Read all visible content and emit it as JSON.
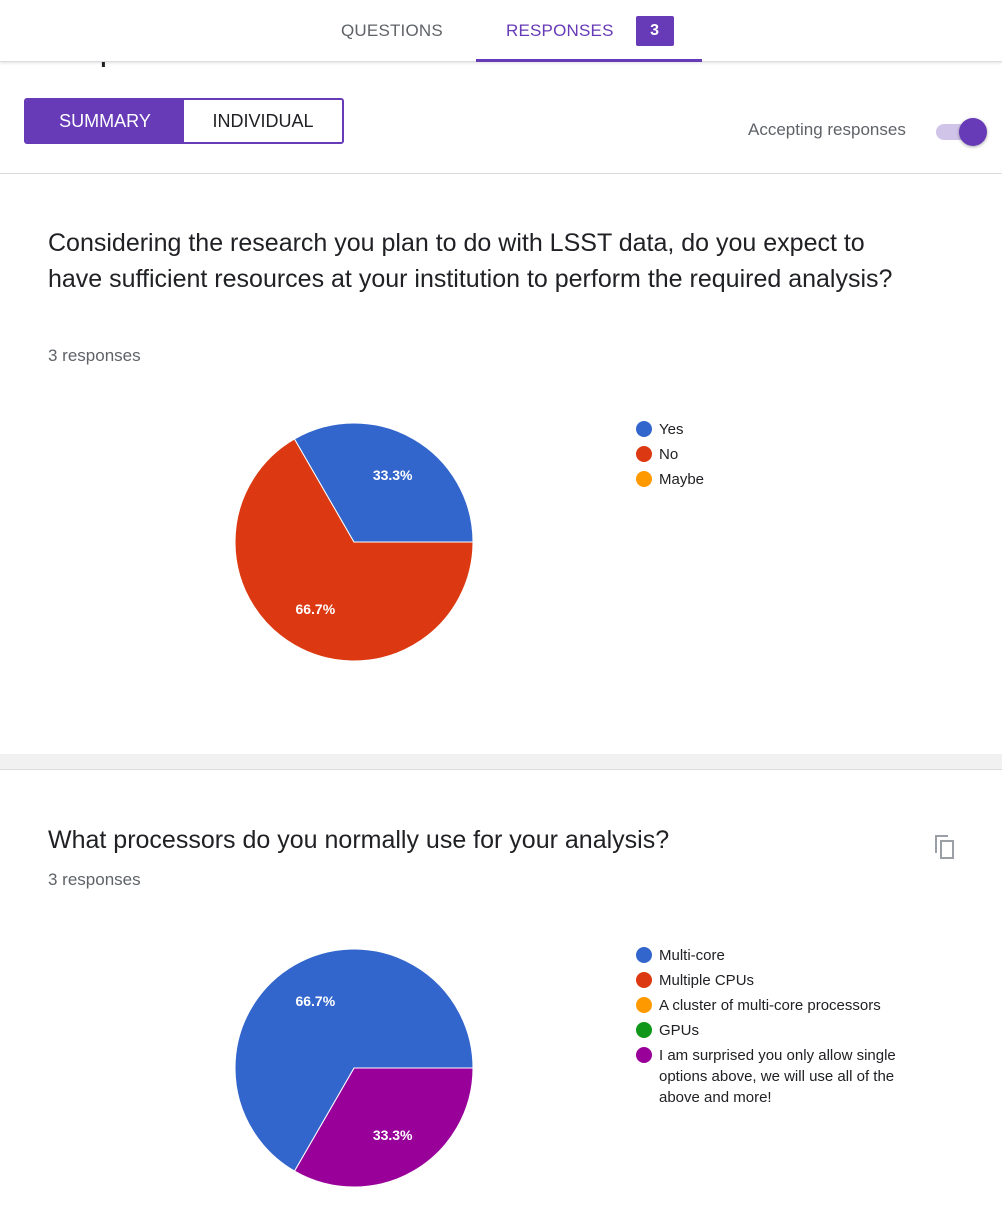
{
  "header": {
    "tabs": [
      {
        "label": "QUESTIONS"
      },
      {
        "label": "RESPONSES",
        "badge": "3"
      }
    ],
    "partial_title": "3 responses"
  },
  "view_toggle": {
    "summary_label": "SUMMARY",
    "individual_label": "INDIVIDUAL"
  },
  "accepting": {
    "label": "Accepting responses",
    "on": true
  },
  "colors": {
    "accent": "#673ab7",
    "blue": "#3366cc",
    "red": "#dc3912",
    "orange": "#ff9900",
    "green": "#109618",
    "purple": "#990099"
  },
  "questions": [
    {
      "title": "Considering the research you plan to do with LSST data, do you expect to have sufficient resources at your institution to perform the required analysis?",
      "responses": "3 responses"
    },
    {
      "title": "What processors do you normally use for your analysis?",
      "responses": "3 responses",
      "action_icon": "copy-icon"
    }
  ],
  "chart_data": [
    {
      "type": "pie",
      "title": "",
      "categories": [
        "Yes",
        "No",
        "Maybe"
      ],
      "values": [
        1,
        2,
        0
      ],
      "labels": [
        "33.3%",
        "66.7%",
        ""
      ],
      "colors": [
        "#3366cc",
        "#dc3912",
        "#ff9900"
      ],
      "legend": "right"
    },
    {
      "type": "pie",
      "title": "",
      "categories": [
        "Multi-core",
        "Multiple CPUs",
        "A cluster of multi-core processors",
        "GPUs",
        "I am surprised you only allow single options above, we will use all of the above and more!"
      ],
      "values": [
        2,
        0,
        0,
        0,
        1
      ],
      "labels": [
        "66.7%",
        "",
        "",
        "",
        "33.3%"
      ],
      "colors": [
        "#3366cc",
        "#dc3912",
        "#ff9900",
        "#109618",
        "#990099"
      ],
      "legend": "right"
    }
  ]
}
